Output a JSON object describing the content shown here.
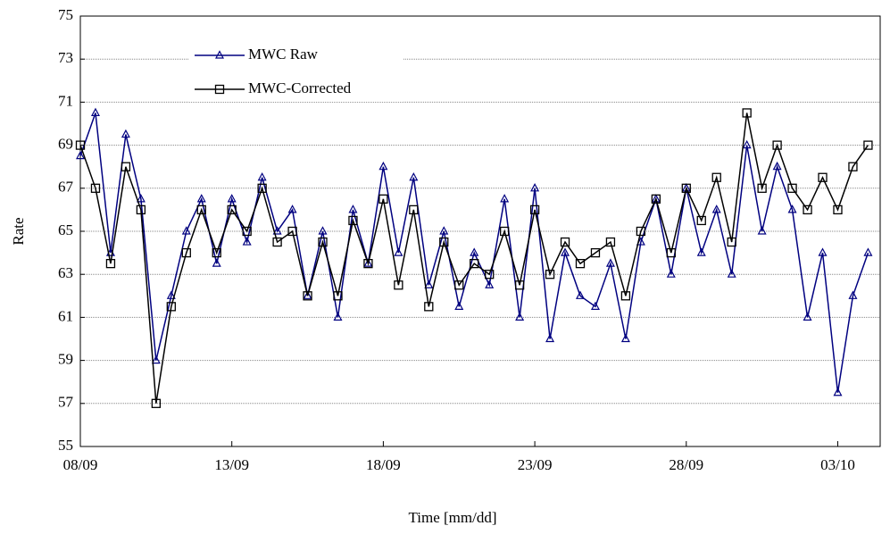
{
  "chart_data": {
    "type": "line",
    "x_label": "Time [mm/dd]",
    "y_label": "Rate",
    "x": [
      0,
      0.5,
      1,
      1.5,
      2,
      2.5,
      3,
      3.5,
      4,
      4.5,
      5,
      5.5,
      6,
      6.5,
      7,
      7.5,
      8,
      8.5,
      9,
      9.5,
      10,
      10.5,
      11,
      11.5,
      12,
      12.5,
      13,
      13.5,
      14,
      14.5,
      15,
      15.5,
      16,
      16.5,
      17,
      17.5,
      18,
      18.5,
      19,
      19.5,
      20,
      20.5,
      21,
      21.5,
      22,
      22.5,
      23,
      23.5,
      24,
      24.5,
      25,
      25.5,
      26
    ],
    "series": [
      {
        "name": "MWC Raw",
        "color": "#000080",
        "marker": "triangle",
        "values": [
          68.5,
          70.5,
          64,
          69.5,
          66.5,
          59,
          62,
          65,
          66.5,
          63.5,
          66.5,
          64.5,
          67.5,
          65,
          66,
          62,
          65,
          61,
          66,
          63.5,
          68,
          64,
          67.5,
          62.5,
          65,
          61.5,
          64,
          62.5,
          66.5,
          61,
          67,
          60,
          64,
          62,
          61.5,
          63.5,
          60,
          64.5,
          66.5,
          63,
          67,
          64,
          66,
          63,
          69,
          65,
          68,
          66,
          61,
          64,
          57.5,
          62,
          64
        ]
      },
      {
        "name": "MWC-Corrected",
        "color": "#000000",
        "marker": "square",
        "values": [
          69,
          67,
          63.5,
          68,
          66,
          57,
          61.5,
          64,
          66,
          64,
          66,
          65,
          67,
          64.5,
          65,
          62,
          64.5,
          62,
          65.5,
          63.5,
          66.5,
          62.5,
          66,
          61.5,
          64.5,
          62.5,
          63.5,
          63,
          65,
          62.5,
          66,
          63,
          64.5,
          63.5,
          64,
          64.5,
          62,
          65,
          66.5,
          64,
          67,
          65.5,
          67.5,
          64.5,
          70.5,
          67,
          69,
          67,
          66,
          67.5,
          66,
          68,
          69
        ]
      }
    ],
    "xlim": [
      0,
      26.4
    ],
    "xticks": [
      {
        "value": 0,
        "label": "08/09"
      },
      {
        "value": 5,
        "label": "13/09"
      },
      {
        "value": 10,
        "label": "18/09"
      },
      {
        "value": 15,
        "label": "23/09"
      },
      {
        "value": 20,
        "label": "28/09"
      },
      {
        "value": 25,
        "label": "03/10"
      }
    ],
    "ylim": [
      55,
      75
    ],
    "yticks": [
      55,
      57,
      59,
      61,
      63,
      65,
      67,
      69,
      71,
      73,
      75
    ],
    "grid": true,
    "legend": "upper left"
  }
}
